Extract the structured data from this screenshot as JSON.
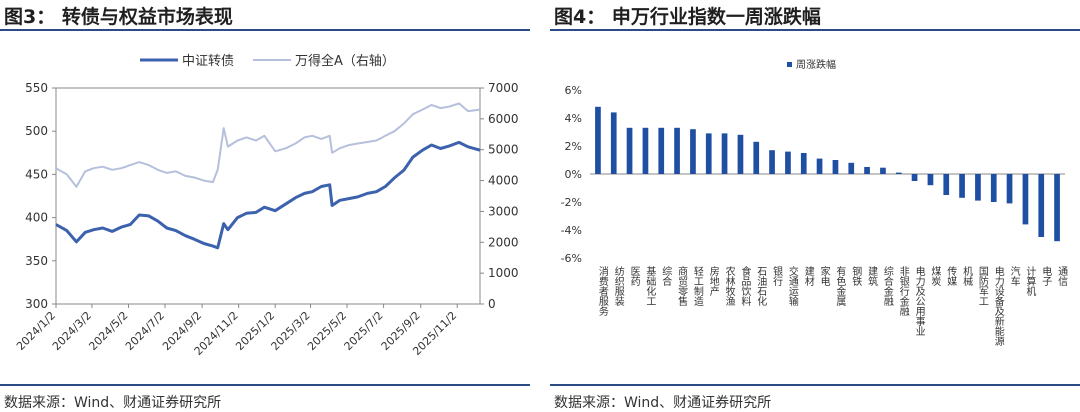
{
  "left": {
    "title": "图3：  转债与权益市场表现",
    "source": "数据来源：Wind、财通证券研究所"
  },
  "right": {
    "title": "图4：  申万行业指数一周涨跌幅",
    "source": "数据来源：Wind、财通证券研究所"
  },
  "chart_data": [
    {
      "type": "line",
      "title": "转债与权益市场表现",
      "x_ticks": [
        "2024/1/2",
        "2024/3/2",
        "2024/5/2",
        "2024/7/2",
        "2024/9/2",
        "2024/11/2",
        "2025/1/2",
        "2025/3/2",
        "2025/5/2",
        "2025/7/2",
        "2025/9/2",
        "2025/11/2"
      ],
      "x_range": [
        "2024/1/2",
        "2025/12/10"
      ],
      "ylim": [
        300,
        550
      ],
      "y_ticks": [
        300,
        350,
        400,
        450,
        500,
        550
      ],
      "y2lim": [
        0,
        7000
      ],
      "y2_ticks": [
        0,
        1000,
        2000,
        3000,
        4000,
        5000,
        6000,
        7000
      ],
      "legend_position": "top",
      "grid": false,
      "series": [
        {
          "name": "中证转债",
          "axis": "left",
          "color": "#3c61ad",
          "points": [
            [
              "2024/1/2",
              392
            ],
            [
              "2024/1/20",
              385
            ],
            [
              "2024/2/5",
              372
            ],
            [
              "2024/2/20",
              383
            ],
            [
              "2024/3/5",
              386
            ],
            [
              "2024/3/20",
              388
            ],
            [
              "2024/4/5",
              384
            ],
            [
              "2024/4/20",
              389
            ],
            [
              "2024/5/5",
              392
            ],
            [
              "2024/5/20",
              403
            ],
            [
              "2024/6/5",
              402
            ],
            [
              "2024/6/20",
              396
            ],
            [
              "2024/7/5",
              388
            ],
            [
              "2024/7/20",
              385
            ],
            [
              "2024/8/5",
              379
            ],
            [
              "2024/8/20",
              375
            ],
            [
              "2024/9/5",
              370
            ],
            [
              "2024/9/20",
              367
            ],
            [
              "2024/9/28",
              365
            ],
            [
              "2024/10/8",
              393
            ],
            [
              "2024/10/15",
              386
            ],
            [
              "2024/10/31",
              400
            ],
            [
              "2024/11/15",
              405
            ],
            [
              "2024/12/1",
              406
            ],
            [
              "2024/12/15",
              412
            ],
            [
              "2025/1/2",
              408
            ],
            [
              "2025/1/20",
              416
            ],
            [
              "2025/2/5",
              423
            ],
            [
              "2025/2/20",
              428
            ],
            [
              "2025/3/5",
              430
            ],
            [
              "2025/3/20",
              436
            ],
            [
              "2025/4/3",
              438
            ],
            [
              "2025/4/7",
              414
            ],
            [
              "2025/4/20",
              420
            ],
            [
              "2025/5/5",
              422
            ],
            [
              "2025/5/20",
              424
            ],
            [
              "2025/6/5",
              428
            ],
            [
              "2025/6/20",
              430
            ],
            [
              "2025/7/5",
              436
            ],
            [
              "2025/7/20",
              446
            ],
            [
              "2025/8/5",
              455
            ],
            [
              "2025/8/20",
              470
            ],
            [
              "2025/9/5",
              478
            ],
            [
              "2025/9/20",
              484
            ],
            [
              "2025/10/5",
              480
            ],
            [
              "2025/10/20",
              483
            ],
            [
              "2025/11/5",
              487
            ],
            [
              "2025/11/20",
              482
            ],
            [
              "2025/12/10",
              478
            ]
          ]
        },
        {
          "name": "万得全A（右轴）",
          "axis": "right",
          "color": "#b6c0dc",
          "points": [
            [
              "2024/1/2",
              4400
            ],
            [
              "2024/1/20",
              4200
            ],
            [
              "2024/2/5",
              3800
            ],
            [
              "2024/2/20",
              4300
            ],
            [
              "2024/3/5",
              4400
            ],
            [
              "2024/3/20",
              4450
            ],
            [
              "2024/4/5",
              4350
            ],
            [
              "2024/4/20",
              4400
            ],
            [
              "2024/5/5",
              4500
            ],
            [
              "2024/5/20",
              4600
            ],
            [
              "2024/6/5",
              4500
            ],
            [
              "2024/6/20",
              4350
            ],
            [
              "2024/7/5",
              4250
            ],
            [
              "2024/7/20",
              4300
            ],
            [
              "2024/8/5",
              4150
            ],
            [
              "2024/8/20",
              4100
            ],
            [
              "2024/9/5",
              4000
            ],
            [
              "2024/9/20",
              3950
            ],
            [
              "2024/9/28",
              4350
            ],
            [
              "2024/10/8",
              5700
            ],
            [
              "2024/10/15",
              5100
            ],
            [
              "2024/10/31",
              5300
            ],
            [
              "2024/11/15",
              5400
            ],
            [
              "2024/12/1",
              5300
            ],
            [
              "2024/12/15",
              5450
            ],
            [
              "2025/1/2",
              4950
            ],
            [
              "2025/1/20",
              5050
            ],
            [
              "2025/2/5",
              5200
            ],
            [
              "2025/2/20",
              5400
            ],
            [
              "2025/3/5",
              5450
            ],
            [
              "2025/3/20",
              5350
            ],
            [
              "2025/4/3",
              5450
            ],
            [
              "2025/4/7",
              4900
            ],
            [
              "2025/4/20",
              5050
            ],
            [
              "2025/5/5",
              5150
            ],
            [
              "2025/5/20",
              5200
            ],
            [
              "2025/6/5",
              5250
            ],
            [
              "2025/6/20",
              5300
            ],
            [
              "2025/7/5",
              5450
            ],
            [
              "2025/7/20",
              5600
            ],
            [
              "2025/8/5",
              5850
            ],
            [
              "2025/8/20",
              6150
            ],
            [
              "2025/9/5",
              6300
            ],
            [
              "2025/9/20",
              6450
            ],
            [
              "2025/10/5",
              6350
            ],
            [
              "2025/10/20",
              6400
            ],
            [
              "2025/11/5",
              6500
            ],
            [
              "2025/11/20",
              6250
            ],
            [
              "2025/12/10",
              6300
            ]
          ]
        }
      ]
    },
    {
      "type": "bar",
      "title": "申万行业指数一周涨跌幅",
      "legend_position": "top",
      "ylim": [
        -6,
        6
      ],
      "y_ticks": [
        -6,
        -4,
        -2,
        0,
        2,
        4,
        6
      ],
      "y_tick_labels": [
        "-6%",
        "-4%",
        "-2%",
        "0%",
        "2%",
        "4%",
        "6%"
      ],
      "bar_color": "#1f4fa3",
      "categories": [
        "消费者服务",
        "纺织服装",
        "医药",
        "基础化工",
        "综合",
        "商贸零售",
        "轻工制造",
        "房地产",
        "农林牧渔",
        "食品饮料",
        "石油石化",
        "银行",
        "交通运输",
        "建材",
        "家电",
        "有色金属",
        "钢铁",
        "建筑",
        "综合金融",
        "非银行金融",
        "电力及公用事业",
        "煤炭",
        "传媒",
        "机械",
        "国防军工",
        "电力设备及新能源",
        "汽车",
        "计算机",
        "电子",
        "通信"
      ],
      "series": [
        {
          "name": "周涨跌幅",
          "values": [
            4.8,
            4.4,
            3.3,
            3.3,
            3.3,
            3.3,
            3.2,
            2.9,
            2.9,
            2.8,
            2.3,
            1.7,
            1.6,
            1.5,
            1.1,
            1.0,
            0.8,
            0.5,
            0.45,
            0.1,
            -0.5,
            -0.8,
            -1.5,
            -1.7,
            -1.9,
            -2.0,
            -2.1,
            -3.6,
            -4.5,
            -4.8
          ]
        }
      ]
    }
  ]
}
